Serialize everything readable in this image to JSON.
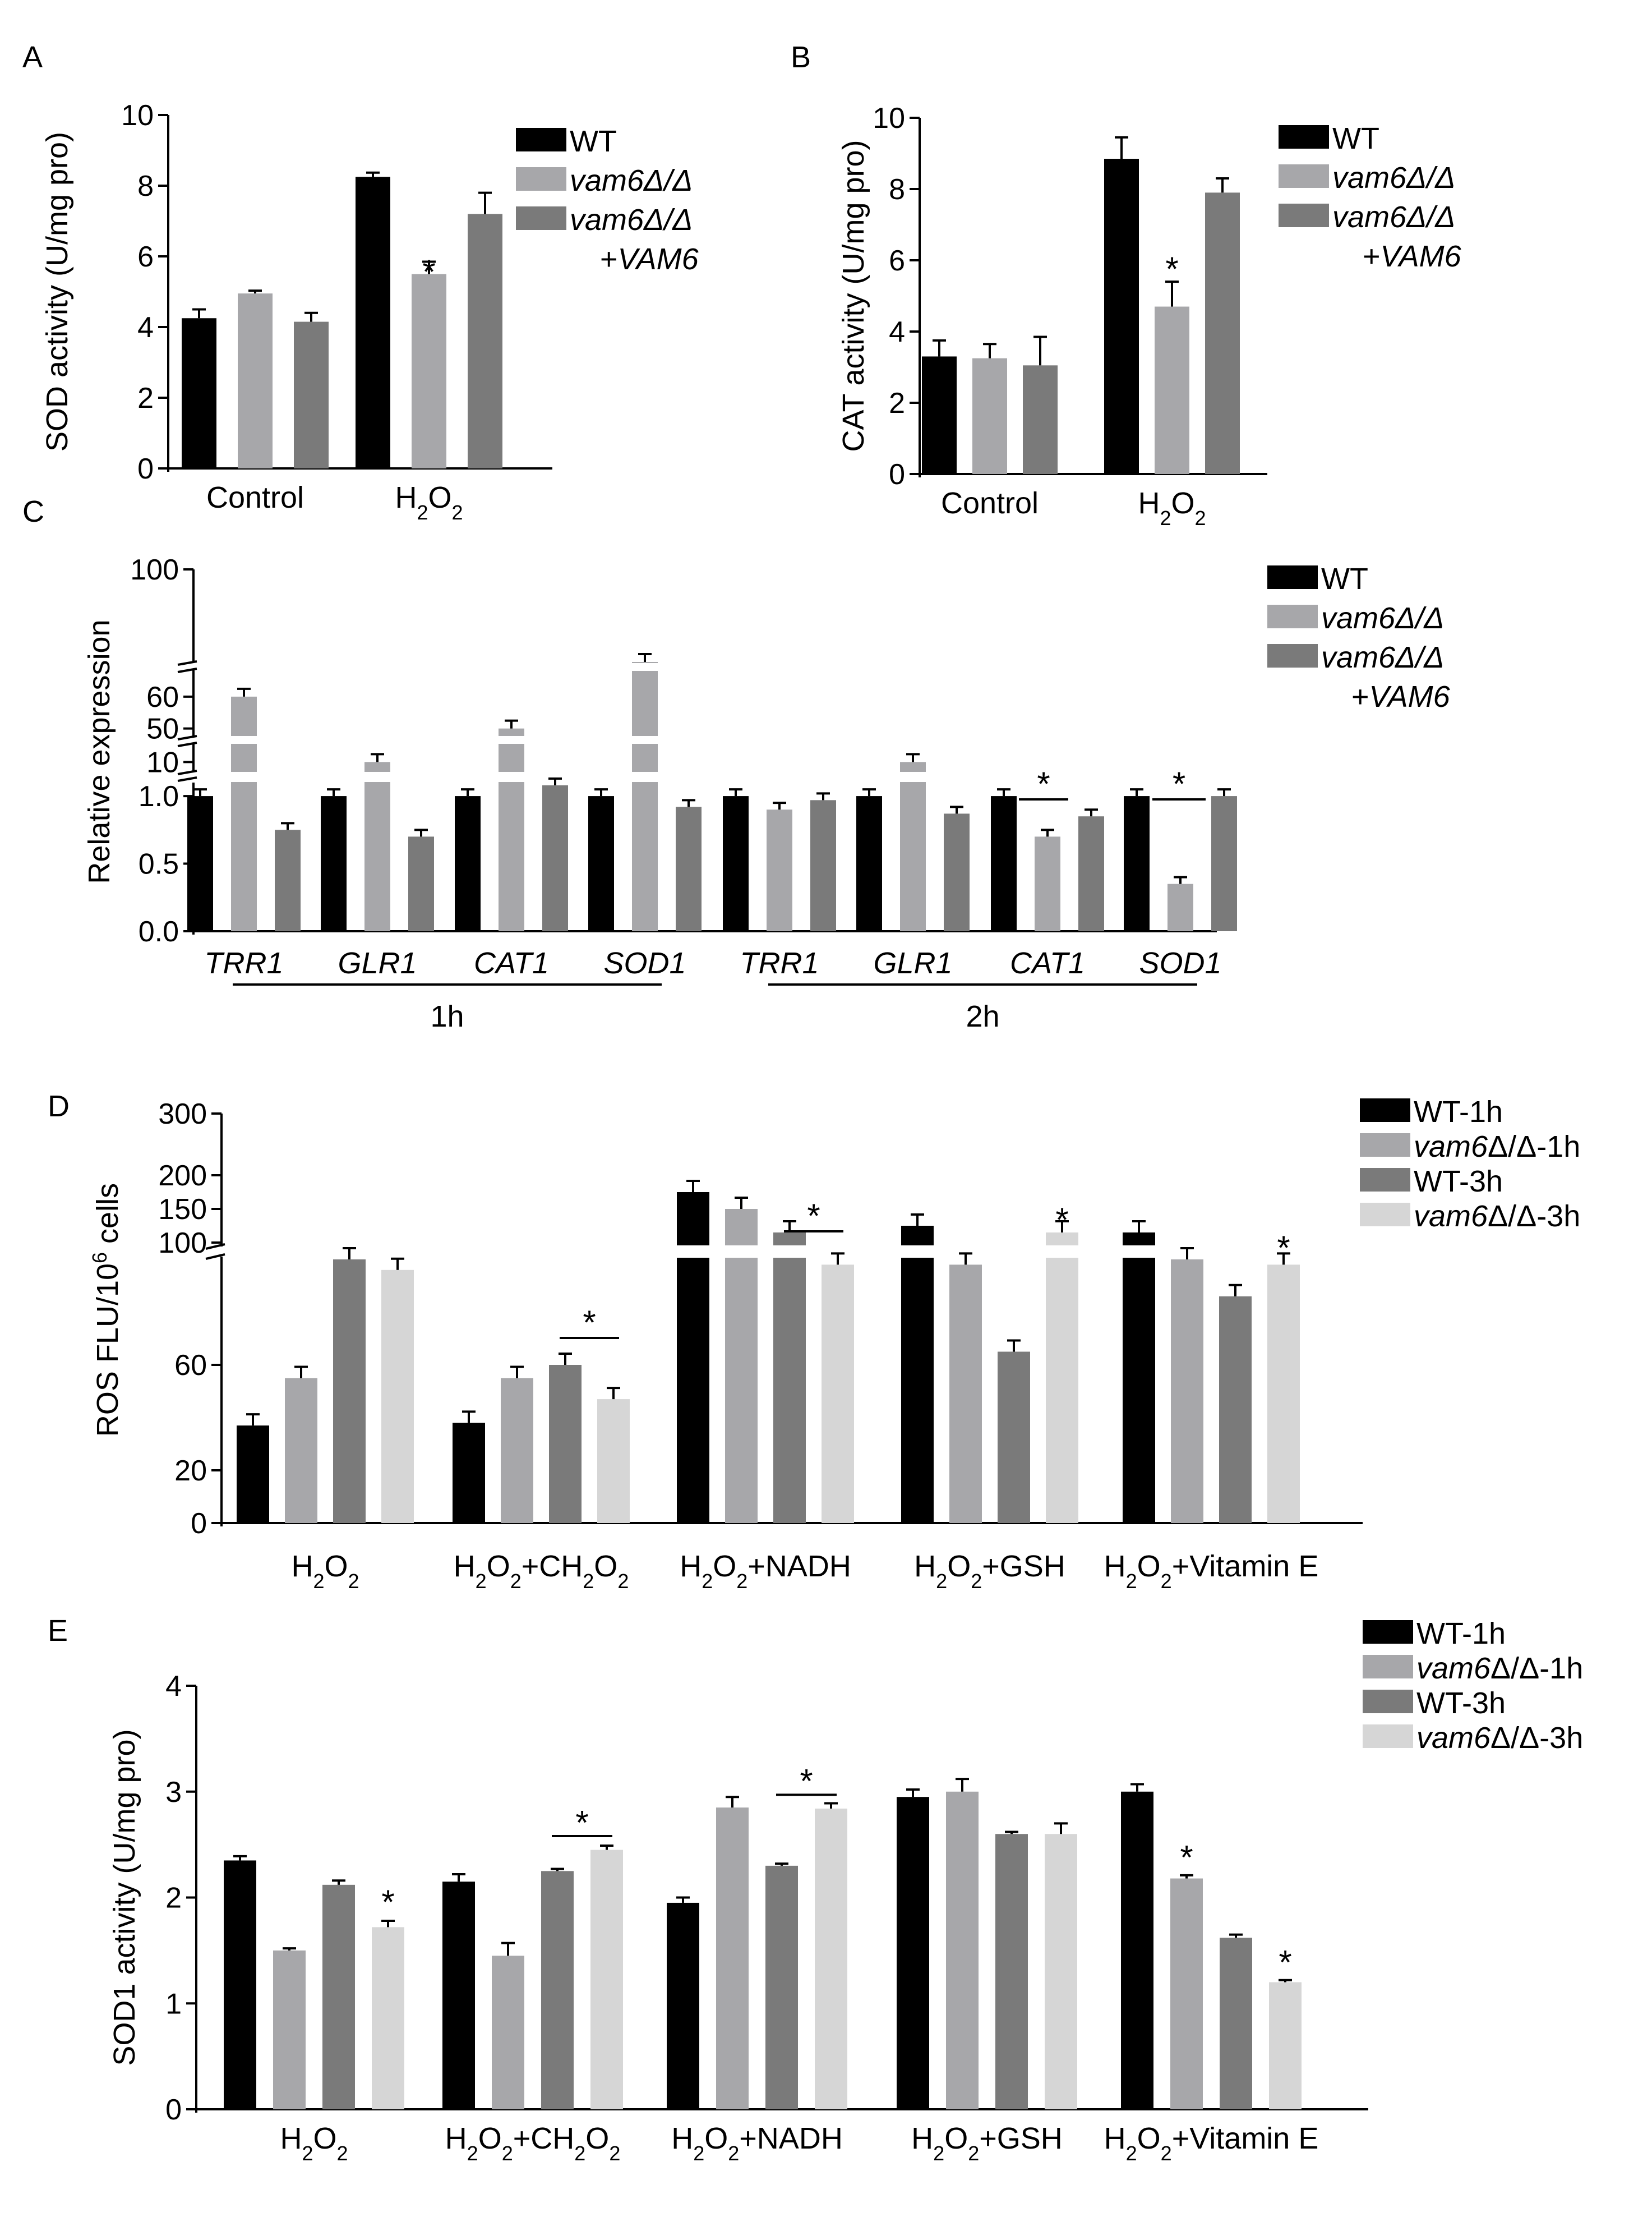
{
  "colors": {
    "wt": "#000000",
    "vam6": "#a7a7aa",
    "comp": "#7a7a7a",
    "vam6_3h": "#d6d6d6"
  },
  "chart_data": [
    {
      "panel": "A",
      "type": "bar",
      "title": "",
      "ylabel": "SOD activity (U/mg pro)",
      "ylim": [
        0,
        10
      ],
      "yticks": [
        "0",
        "2",
        "4",
        "6",
        "8",
        "10"
      ],
      "categories": [
        "Control",
        "H2O2"
      ],
      "series": [
        {
          "name": "WT",
          "values": [
            4.25,
            8.25
          ],
          "errors": [
            0.25,
            0.12
          ]
        },
        {
          "name": "vam6Δ/Δ",
          "values": [
            4.95,
            5.5
          ],
          "errors": [
            0.08,
            0.35
          ]
        },
        {
          "name": "vam6Δ/Δ +VAM6",
          "values": [
            4.15,
            7.2
          ],
          "errors": [
            0.25,
            0.6
          ]
        }
      ],
      "annotations": [
        "*"
      ],
      "legend": {
        "position": "top-right",
        "entries": [
          {
            "roman": "WT",
            "italic": ""
          },
          {
            "roman": "",
            "italic": "vam6Δ/Δ"
          },
          {
            "roman": "",
            "italic": "vam6Δ/Δ",
            "line2_roman": "+",
            "line2_italic": "VAM6"
          }
        ]
      }
    },
    {
      "panel": "B",
      "type": "bar",
      "title": "",
      "ylabel": "CAT activity (U/mg pro)",
      "ylim": [
        0,
        10
      ],
      "yticks": [
        "0",
        "2",
        "4",
        "6",
        "8",
        "10"
      ],
      "categories": [
        "Control",
        "H2O2"
      ],
      "series": [
        {
          "name": "WT",
          "values": [
            3.3,
            8.85
          ],
          "errors": [
            0.45,
            0.6
          ]
        },
        {
          "name": "vam6Δ/Δ",
          "values": [
            3.25,
            4.7
          ],
          "errors": [
            0.4,
            0.7
          ]
        },
        {
          "name": "vam6Δ/Δ +VAM6",
          "values": [
            3.05,
            7.9
          ],
          "errors": [
            0.8,
            0.4
          ]
        }
      ],
      "annotations": [
        "*"
      ],
      "legend": {
        "position": "top-right",
        "entries": [
          {
            "roman": "WT",
            "italic": ""
          },
          {
            "roman": "",
            "italic": "vam6Δ/Δ"
          },
          {
            "roman": "",
            "italic": "vam6Δ/Δ",
            "line2_roman": "+",
            "line2_italic": "VAM6"
          }
        ]
      }
    },
    {
      "panel": "C",
      "type": "bar",
      "title": "",
      "ylabel": "Relative expression",
      "y_axis": "broken",
      "yticks": [
        "0.0",
        "0.5",
        "1.0",
        "10",
        "50",
        "60",
        "100"
      ],
      "categories": [
        "TRR1",
        "GLR1",
        "CAT1",
        "SOD1",
        "TRR1",
        "GLR1",
        "CAT1",
        "SOD1"
      ],
      "groups": [
        {
          "label": "1h",
          "span": [
            0,
            3
          ]
        },
        {
          "label": "2h",
          "span": [
            4,
            7
          ]
        }
      ],
      "series": [
        {
          "name": "WT",
          "values": [
            1.0,
            1.0,
            1.0,
            1.0,
            1.0,
            1.0,
            1.0,
            1.0
          ]
        },
        {
          "name": "vam6Δ/Δ",
          "values": [
            60,
            10,
            50,
            90,
            0.9,
            10,
            0.7,
            0.35
          ]
        },
        {
          "name": "vam6Δ/Δ +VAM6",
          "values": [
            0.75,
            0.7,
            1.08,
            0.92,
            0.97,
            0.87,
            0.85,
            1.0
          ]
        }
      ],
      "annotations": [
        "*",
        "*"
      ],
      "legend": {
        "position": "top-right",
        "entries": [
          {
            "roman": "WT",
            "italic": ""
          },
          {
            "roman": "",
            "italic": "vam6Δ/Δ"
          },
          {
            "roman": "",
            "italic": "vam6Δ/Δ",
            "line2_roman": "+",
            "line2_italic": "VAM6"
          }
        ]
      }
    },
    {
      "panel": "D",
      "type": "bar",
      "title": "",
      "ylabel": "ROS FLU/10",
      "ylabel_sup": "6",
      "ylabel_tail": " cells",
      "y_axis": "broken",
      "yticks": [
        "0",
        "20",
        "60",
        "100",
        "150",
        "200",
        "300"
      ],
      "categories": [
        "H2O2",
        "H2O2+CH2O2",
        "H2O2+NADH",
        "H2O2+GSH",
        "H2O2+Vitamin E"
      ],
      "series": [
        {
          "name": "WT-1h",
          "values": [
            37,
            38,
            175,
            125,
            115
          ]
        },
        {
          "name": "vam6Δ/Δ-1h",
          "values": [
            55,
            55,
            150,
            98,
            100
          ]
        },
        {
          "name": "WT-3h",
          "values": [
            100,
            60,
            115,
            65,
            86
          ]
        },
        {
          "name": "vam6Δ/Δ-3h",
          "values": [
            96,
            47,
            98,
            115,
            98
          ]
        }
      ],
      "annotations": [
        "*",
        "*",
        "*",
        "*"
      ],
      "legend": {
        "position": "top-right",
        "entries": [
          {
            "roman": "WT-1h",
            "italic": ""
          },
          {
            "roman": "Δ/Δ-1h",
            "italic": "vam6"
          },
          {
            "roman": "WT-3h",
            "italic": ""
          },
          {
            "roman": "Δ/Δ-3h",
            "italic": "vam6"
          }
        ]
      }
    },
    {
      "panel": "E",
      "type": "bar",
      "title": "",
      "ylabel": "SOD1 activity (U/mg pro)",
      "ylim": [
        0,
        4
      ],
      "yticks": [
        "0",
        "1",
        "2",
        "3",
        "4"
      ],
      "categories": [
        "H2O2",
        "H2O2+CH2O2",
        "H2O2+NADH",
        "H2O2+GSH",
        "H2O2+Vitamin E"
      ],
      "series": [
        {
          "name": "WT-1h",
          "values": [
            2.35,
            2.15,
            1.95,
            2.95,
            3.0
          ],
          "errors": [
            0.04,
            0.07,
            0.05,
            0.07,
            0.07
          ]
        },
        {
          "name": "vam6Δ/Δ-1h",
          "values": [
            1.5,
            1.45,
            2.85,
            3.0,
            2.18
          ],
          "errors": [
            0.02,
            0.12,
            0.1,
            0.12,
            0.03
          ]
        },
        {
          "name": "WT-3h",
          "values": [
            2.12,
            2.25,
            2.3,
            2.6,
            1.62
          ],
          "errors": [
            0.04,
            0.02,
            0.02,
            0.02,
            0.03
          ]
        },
        {
          "name": "vam6Δ/Δ-3h",
          "values": [
            1.72,
            2.45,
            2.84,
            2.6,
            1.2
          ],
          "errors": [
            0.06,
            0.04,
            0.05,
            0.1,
            0.02
          ]
        }
      ],
      "annotations": [
        "*",
        "*",
        "*",
        "*",
        "*"
      ],
      "legend": {
        "position": "top-right",
        "entries": [
          {
            "roman": "WT-1h",
            "italic": ""
          },
          {
            "roman": "Δ/Δ-1h",
            "italic": "vam6"
          },
          {
            "roman": "WT-3h",
            "italic": ""
          },
          {
            "roman": "Δ/Δ-3h",
            "italic": "vam6"
          }
        ]
      }
    }
  ]
}
